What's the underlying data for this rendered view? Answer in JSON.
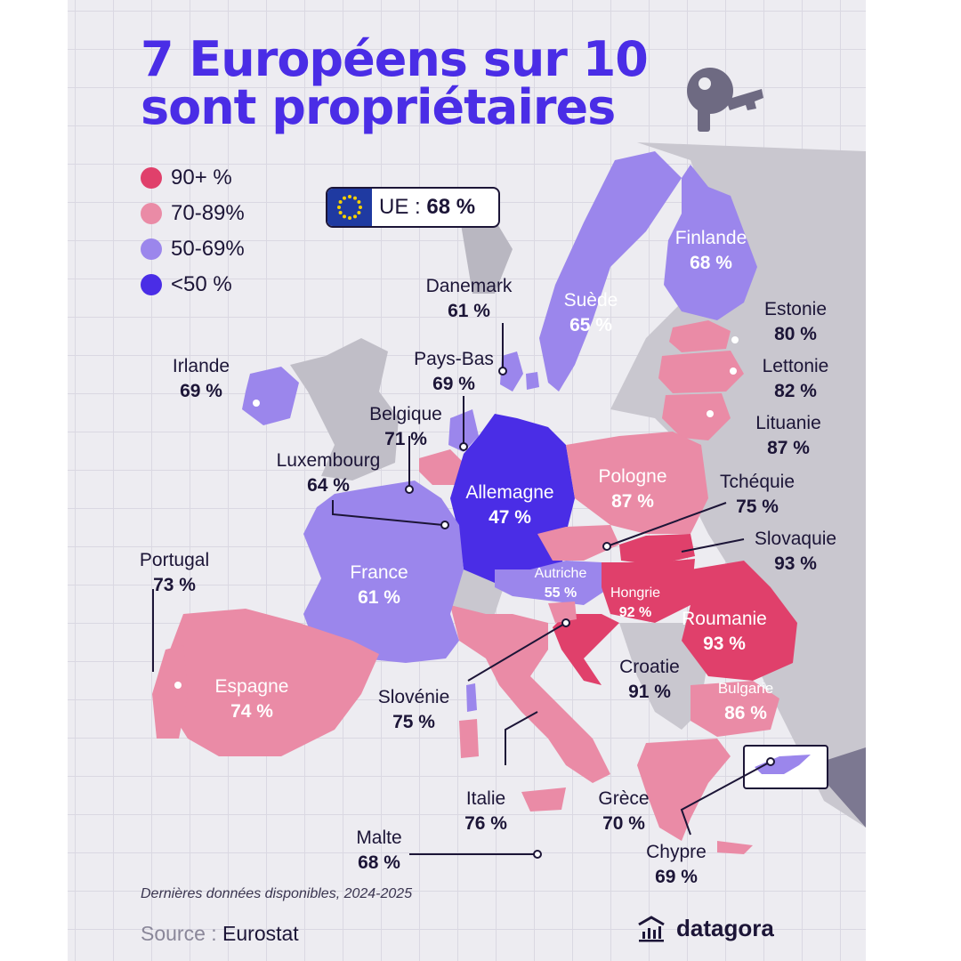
{
  "title_line1": "7 Européens sur 10",
  "title_line2": "sont propriétaires",
  "legend": [
    {
      "label": "90+ %",
      "color": "#e0406b"
    },
    {
      "label": "70-89%",
      "color": "#ea8ba6"
    },
    {
      "label": "50-69%",
      "color": "#9b86ec"
    },
    {
      "label": "<50 %",
      "color": "#4a2de6"
    }
  ],
  "eu_badge": {
    "label": "UE :",
    "value": "68 %"
  },
  "countries": {
    "finlande": {
      "name": "Finlande",
      "value": "68 %"
    },
    "suede": {
      "name": "Suède",
      "value": "65 %"
    },
    "danemark": {
      "name": "Danemark",
      "value": "61 %"
    },
    "estonie": {
      "name": "Estonie",
      "value": "80 %"
    },
    "lettonie": {
      "name": "Lettonie",
      "value": "82 %"
    },
    "lituanie": {
      "name": "Lituanie",
      "value": "87 %"
    },
    "irlande": {
      "name": "Irlande",
      "value": "69 %"
    },
    "pays_bas": {
      "name": "Pays-Bas",
      "value": "69 %"
    },
    "belgique": {
      "name": "Belgique",
      "value": "71 %"
    },
    "luxembourg": {
      "name": "Luxembourg",
      "value": "64 %"
    },
    "allemagne": {
      "name": "Allemagne",
      "value": "47 %"
    },
    "pologne": {
      "name": "Pologne",
      "value": "87 %"
    },
    "tchequie": {
      "name": "Tchéquie",
      "value": "75 %"
    },
    "slovaquie": {
      "name": "Slovaquie",
      "value": "93 %"
    },
    "portugal": {
      "name": "Portugal",
      "value": "73 %"
    },
    "france": {
      "name": "France",
      "value": "61 %"
    },
    "autriche": {
      "name": "Autriche",
      "value": "55 %"
    },
    "hongrie": {
      "name": "Hongrie",
      "value": "92 %"
    },
    "roumanie": {
      "name": "Roumanie",
      "value": "93 %"
    },
    "espagne": {
      "name": "Espagne",
      "value": "74 %"
    },
    "slovenie": {
      "name": "Slovénie",
      "value": "75 %"
    },
    "croatie": {
      "name": "Croatie",
      "value": "91 %"
    },
    "bulgarie": {
      "name": "Bulgarie",
      "value": "86 %"
    },
    "italie": {
      "name": "Italie",
      "value": "76 %"
    },
    "grece": {
      "name": "Grèce",
      "value": "70 %"
    },
    "malte": {
      "name": "Malte",
      "value": "68 %"
    },
    "chypre": {
      "name": "Chypre",
      "value": "69 %"
    }
  },
  "footnote": "Dernières données disponibles, 2024-2025",
  "source_label": "Source :",
  "source_value": "Eurostat",
  "brand": "datagora",
  "colors": {
    "title": "#4a2de6",
    "ink": "#1c1537",
    "nonEU": "#c7c5cc",
    "gridBg": "#edecf1"
  }
}
